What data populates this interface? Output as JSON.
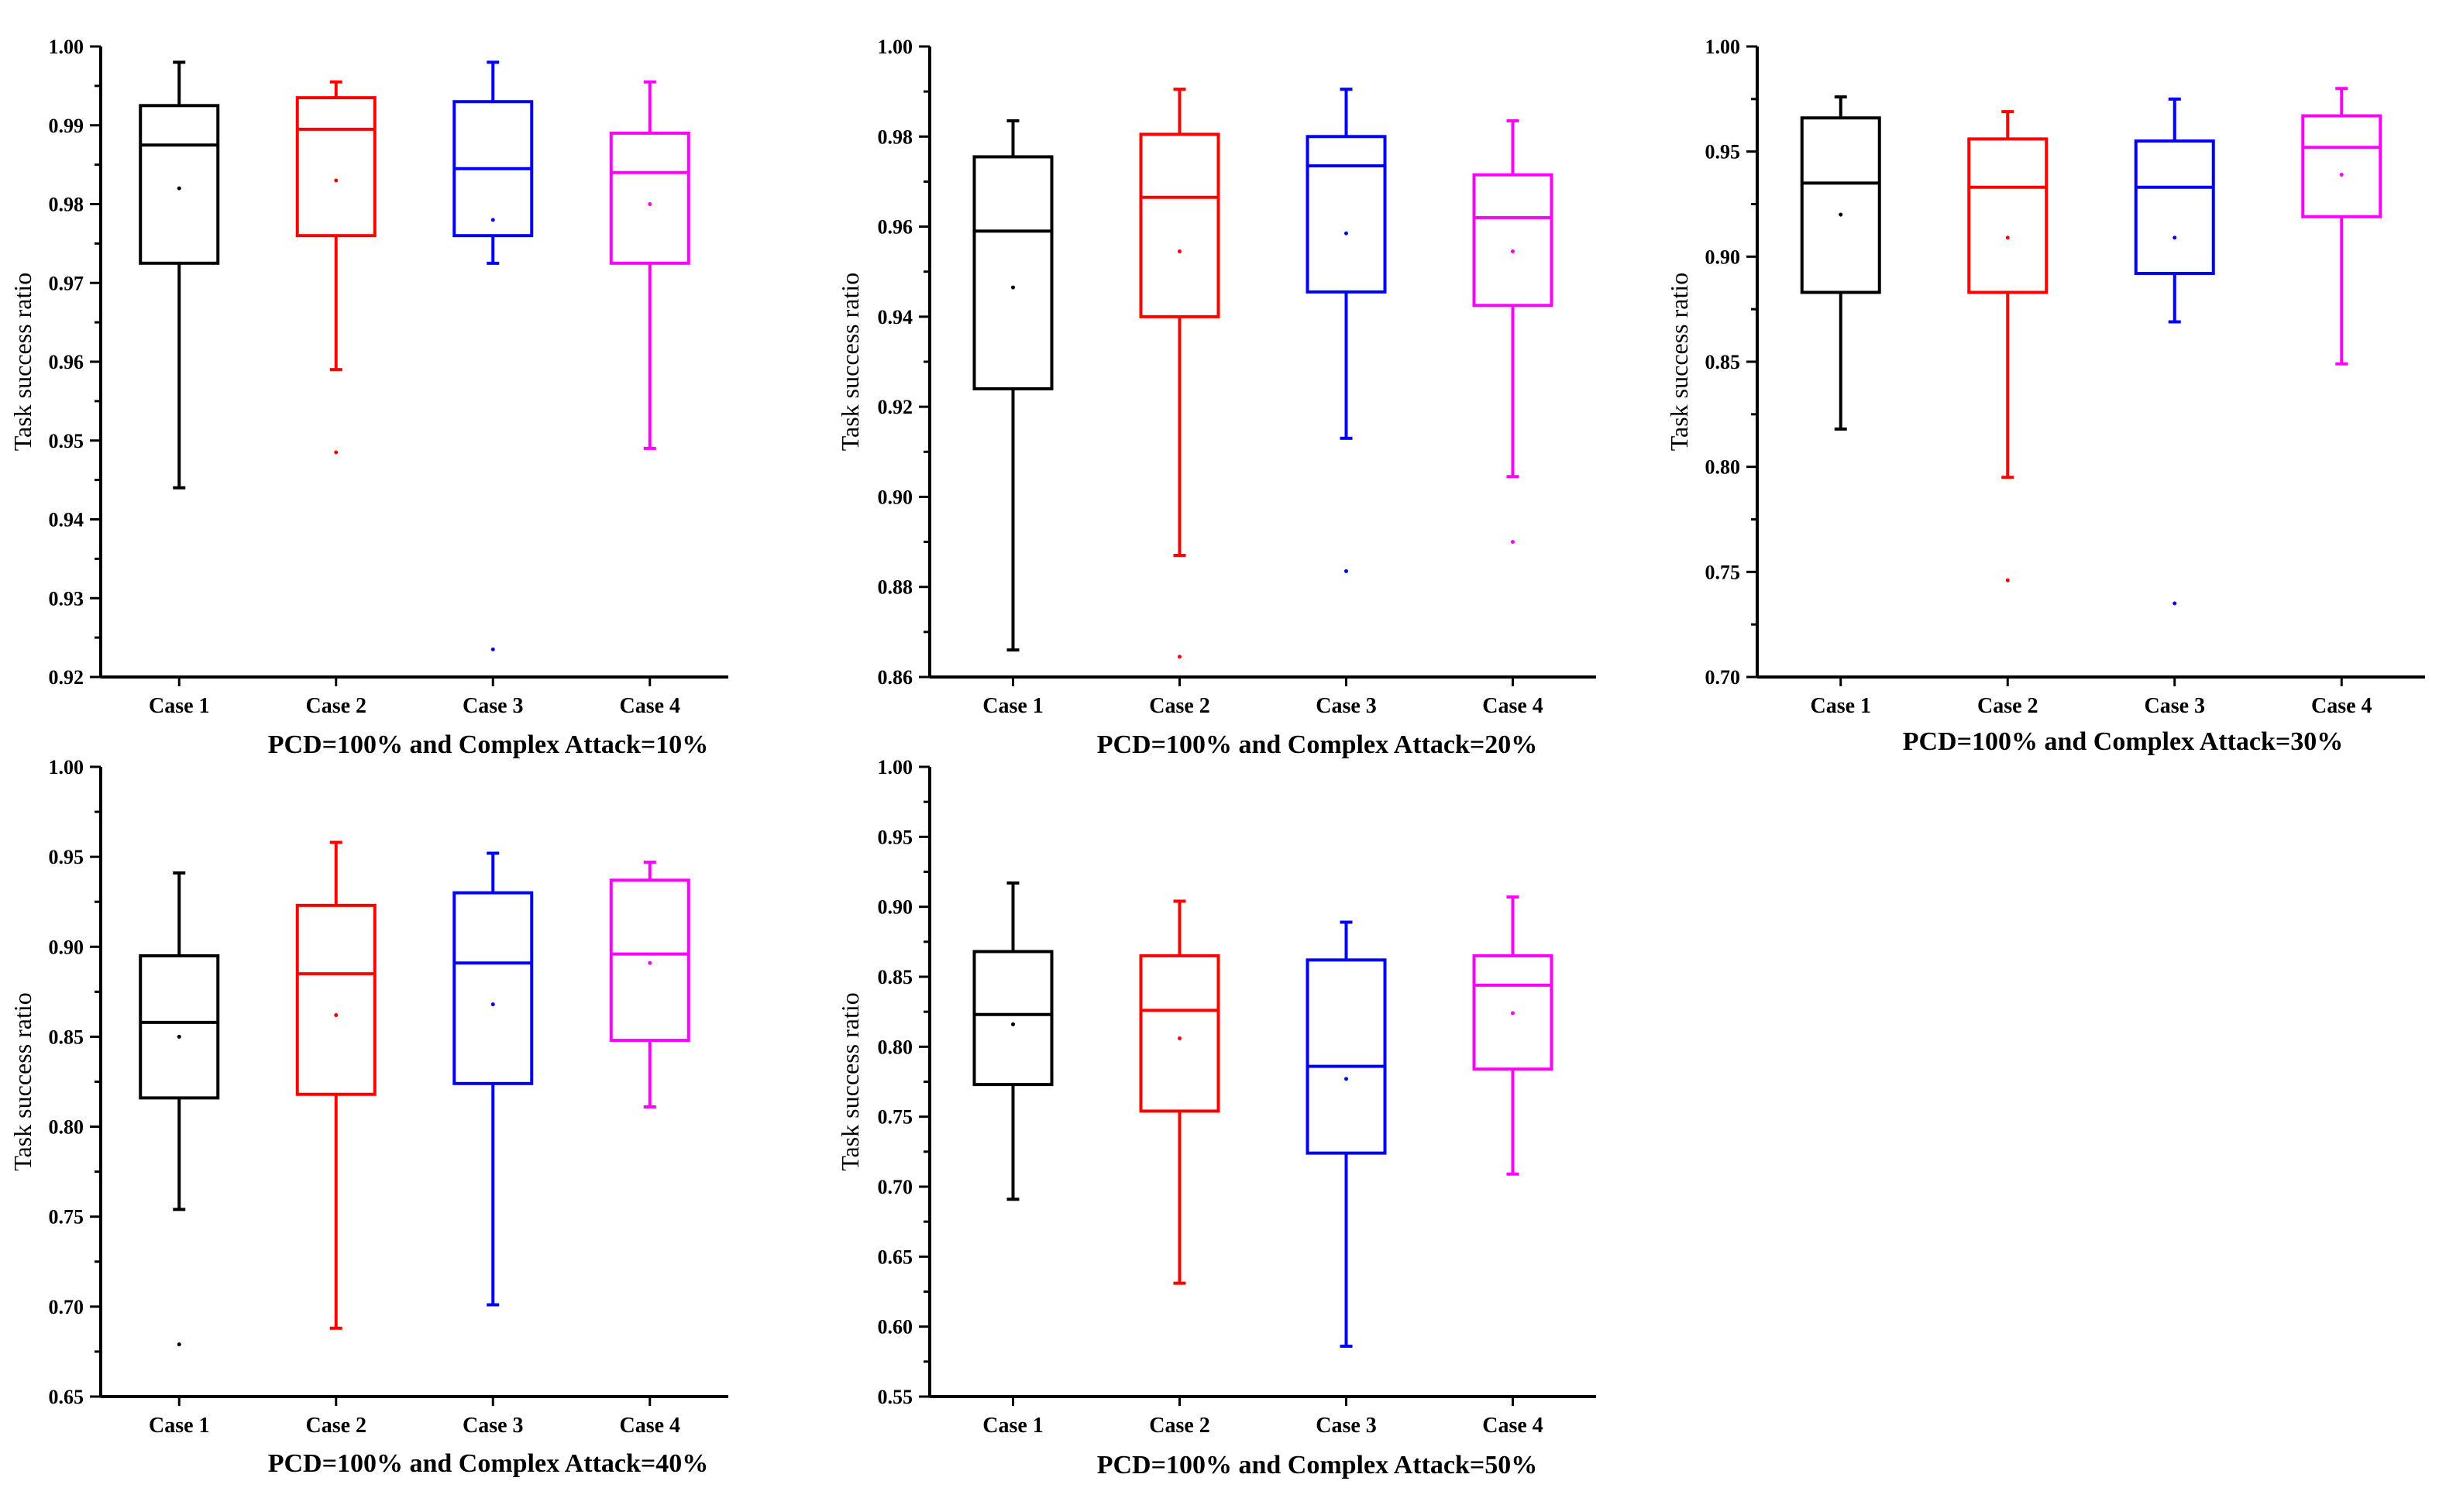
{
  "chart_data": [
    {
      "type": "box",
      "title": "PCD=100% and Complex Attack=10%",
      "ylabel": "Task success ratio",
      "ylim": [
        0.92,
        1.0
      ],
      "yticks": [
        0.92,
        0.93,
        0.94,
        0.95,
        0.96,
        0.97,
        0.98,
        0.99,
        1.0
      ],
      "ytick_labels": [
        "0.92",
        "0.93",
        "0.94",
        "0.95",
        "0.96",
        "0.97",
        "0.98",
        "0.99",
        "1.00"
      ],
      "categories": [
        "Case 1",
        "Case 2",
        "Case 3",
        "Case 4"
      ],
      "colors": [
        "#000000",
        "#ff0000",
        "#0000ff",
        "#ff00ff"
      ],
      "boxes": [
        {
          "whisker_low": 0.944,
          "q1": 0.9725,
          "median": 0.9875,
          "q3": 0.9925,
          "whisker_high": 0.998,
          "mean": 0.982,
          "outliers": []
        },
        {
          "whisker_low": 0.959,
          "q1": 0.976,
          "median": 0.9895,
          "q3": 0.9935,
          "whisker_high": 0.9955,
          "mean": 0.983,
          "outliers": [
            0.9485
          ]
        },
        {
          "whisker_low": 0.9725,
          "q1": 0.976,
          "median": 0.9845,
          "q3": 0.993,
          "whisker_high": 0.998,
          "mean": 0.978,
          "outliers": [
            0.9235
          ]
        },
        {
          "whisker_low": 0.949,
          "q1": 0.9725,
          "median": 0.984,
          "q3": 0.989,
          "whisker_high": 0.9955,
          "mean": 0.98,
          "outliers": []
        }
      ]
    },
    {
      "type": "box",
      "title": "PCD=100% and Complex Attack=20%",
      "ylabel": "Task success ratio",
      "ylim": [
        0.86,
        1.0
      ],
      "yticks": [
        0.86,
        0.88,
        0.9,
        0.92,
        0.94,
        0.96,
        0.98,
        1.0
      ],
      "ytick_labels": [
        "0.86",
        "0.88",
        "0.90",
        "0.92",
        "0.94",
        "0.96",
        "0.98",
        "1.00"
      ],
      "categories": [
        "Case 1",
        "Case 2",
        "Case 3",
        "Case 4"
      ],
      "colors": [
        "#000000",
        "#ff0000",
        "#0000ff",
        "#ff00ff"
      ],
      "boxes": [
        {
          "whisker_low": 0.866,
          "q1": 0.924,
          "median": 0.959,
          "q3": 0.9755,
          "whisker_high": 0.9835,
          "mean": 0.9465,
          "outliers": []
        },
        {
          "whisker_low": 0.887,
          "q1": 0.94,
          "median": 0.9665,
          "q3": 0.9805,
          "whisker_high": 0.9905,
          "mean": 0.9545,
          "outliers": [
            0.8645
          ]
        },
        {
          "whisker_low": 0.913,
          "q1": 0.9455,
          "median": 0.9735,
          "q3": 0.98,
          "whisker_high": 0.9905,
          "mean": 0.9585,
          "outliers": [
            0.8835
          ]
        },
        {
          "whisker_low": 0.9045,
          "q1": 0.9425,
          "median": 0.962,
          "q3": 0.9715,
          "whisker_high": 0.9835,
          "mean": 0.9545,
          "outliers": [
            0.89
          ]
        }
      ]
    },
    {
      "type": "box",
      "title": "PCD=100% and Complex Attack=30%",
      "ylabel": "Task success ratio",
      "ylim": [
        0.7,
        1.0
      ],
      "yticks": [
        0.7,
        0.75,
        0.8,
        0.85,
        0.9,
        0.95,
        1.0
      ],
      "ytick_labels": [
        "0.70",
        "0.75",
        "0.80",
        "0.85",
        "0.90",
        "0.95",
        "1.00"
      ],
      "categories": [
        "Case 1",
        "Case 2",
        "Case 3",
        "Case 4"
      ],
      "colors": [
        "#000000",
        "#ff0000",
        "#0000ff",
        "#ff00ff"
      ],
      "boxes": [
        {
          "whisker_low": 0.818,
          "q1": 0.883,
          "median": 0.935,
          "q3": 0.966,
          "whisker_high": 0.976,
          "mean": 0.92,
          "outliers": []
        },
        {
          "whisker_low": 0.795,
          "q1": 0.883,
          "median": 0.933,
          "q3": 0.956,
          "whisker_high": 0.969,
          "mean": 0.909,
          "outliers": [
            0.746
          ]
        },
        {
          "whisker_low": 0.869,
          "q1": 0.892,
          "median": 0.933,
          "q3": 0.955,
          "whisker_high": 0.975,
          "mean": 0.909,
          "outliers": [
            0.735
          ]
        },
        {
          "whisker_low": 0.849,
          "q1": 0.919,
          "median": 0.952,
          "q3": 0.967,
          "whisker_high": 0.98,
          "mean": 0.939,
          "outliers": []
        }
      ]
    },
    {
      "type": "box",
      "title": "PCD=100% and Complex Attack=40%",
      "ylabel": "Task success ratio",
      "ylim": [
        0.65,
        1.0
      ],
      "yticks": [
        0.65,
        0.7,
        0.75,
        0.8,
        0.85,
        0.9,
        0.95,
        1.0
      ],
      "ytick_labels": [
        "0.65",
        "0.70",
        "0.75",
        "0.80",
        "0.85",
        "0.90",
        "0.95",
        "1.00"
      ],
      "categories": [
        "Case 1",
        "Case 2",
        "Case 3",
        "Case 4"
      ],
      "colors": [
        "#000000",
        "#ff0000",
        "#0000ff",
        "#ff00ff"
      ],
      "boxes": [
        {
          "whisker_low": 0.754,
          "q1": 0.816,
          "median": 0.858,
          "q3": 0.895,
          "whisker_high": 0.941,
          "mean": 0.85,
          "outliers": [
            0.679
          ]
        },
        {
          "whisker_low": 0.688,
          "q1": 0.818,
          "median": 0.885,
          "q3": 0.923,
          "whisker_high": 0.958,
          "mean": 0.862,
          "outliers": []
        },
        {
          "whisker_low": 0.701,
          "q1": 0.824,
          "median": 0.891,
          "q3": 0.93,
          "whisker_high": 0.952,
          "mean": 0.868,
          "outliers": []
        },
        {
          "whisker_low": 0.811,
          "q1": 0.848,
          "median": 0.896,
          "q3": 0.937,
          "whisker_high": 0.947,
          "mean": 0.891,
          "outliers": []
        }
      ]
    },
    {
      "type": "box",
      "title": "PCD=100% and Complex Attack=50%",
      "ylabel": "Task success ratio",
      "ylim": [
        0.55,
        1.0
      ],
      "yticks": [
        0.55,
        0.6,
        0.65,
        0.7,
        0.75,
        0.8,
        0.85,
        0.9,
        0.95,
        1.0
      ],
      "ytick_labels": [
        "0.55",
        "0.60",
        "0.65",
        "0.70",
        "0.75",
        "0.80",
        "0.85",
        "0.90",
        "0.95",
        "1.00"
      ],
      "categories": [
        "Case 1",
        "Case 2",
        "Case 3",
        "Case 4"
      ],
      "colors": [
        "#000000",
        "#ff0000",
        "#0000ff",
        "#ff00ff"
      ],
      "boxes": [
        {
          "whisker_low": 0.691,
          "q1": 0.773,
          "median": 0.823,
          "q3": 0.868,
          "whisker_high": 0.917,
          "mean": 0.816,
          "outliers": []
        },
        {
          "whisker_low": 0.631,
          "q1": 0.754,
          "median": 0.826,
          "q3": 0.865,
          "whisker_high": 0.904,
          "mean": 0.806,
          "outliers": []
        },
        {
          "whisker_low": 0.586,
          "q1": 0.724,
          "median": 0.786,
          "q3": 0.862,
          "whisker_high": 0.889,
          "mean": 0.777,
          "outliers": []
        },
        {
          "whisker_low": 0.709,
          "q1": 0.784,
          "median": 0.844,
          "q3": 0.865,
          "whisker_high": 0.907,
          "mean": 0.824,
          "outliers": []
        }
      ]
    }
  ]
}
